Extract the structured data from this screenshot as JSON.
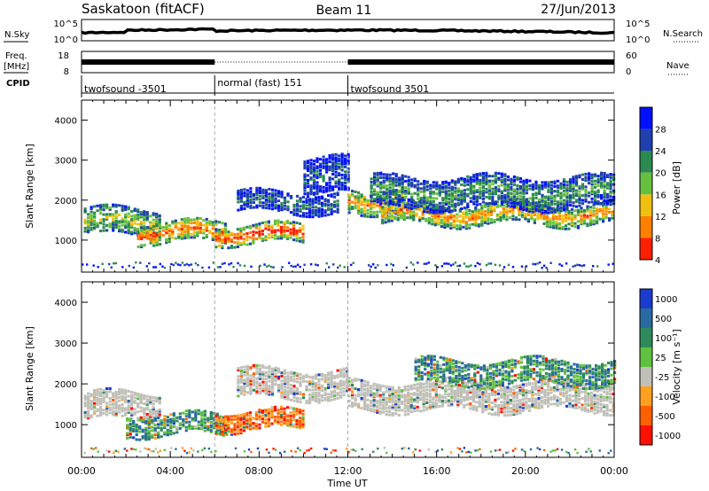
{
  "header": {
    "title": "Saskatoon (fitACF)",
    "beam": "Beam 11",
    "date": "27/Jun/2013"
  },
  "params": {
    "nsky_label": "N.Sky",
    "nsearch_label": "N.Search",
    "nsky_ticks": [
      "10^5",
      "10^0"
    ],
    "nsearch_ticks": [
      "10^5",
      "10^0"
    ],
    "freq_label_top": "Freq.",
    "freq_label_unit": "[MHz]",
    "freq_ticks": [
      "18",
      "8"
    ],
    "nave_label": "Nave",
    "nave_ticks": [
      "60",
      "0"
    ],
    "cpid_label": "CPID",
    "cpid_segments": [
      {
        "label": "twofsound -3501",
        "start_hour": 0,
        "end_hour": 6
      },
      {
        "label": "normal (fast) 151",
        "start_hour": 6,
        "end_hour": 12
      },
      {
        "label": "twofsound 3501",
        "start_hour": 12,
        "end_hour": 24
      }
    ]
  },
  "chart_data": [
    {
      "type": "heatmap",
      "name": "power",
      "ylabel": "Slant Range [km]",
      "xlim_hours": [
        0,
        24
      ],
      "ylim": [
        200,
        4500
      ],
      "yticks": [
        "1000",
        "2000",
        "3000",
        "4000"
      ],
      "colorbar_label": "Power [dB]",
      "colorbar_ticks": [
        "28",
        "24",
        "20",
        "16",
        "12",
        "8",
        "4"
      ],
      "colors": [
        "#0010ff",
        "#2040b0",
        "#2c8a50",
        "#68c040",
        "#f0c010",
        "#ff8000",
        "#ff2000"
      ],
      "mode_change_hours": [
        6,
        12
      ],
      "echo_bands": [
        {
          "start_hour": 0.1,
          "end_hour": 3.5,
          "center_km": 1450,
          "width_km": 650,
          "strength": 0.6
        },
        {
          "start_hour": 2.5,
          "end_hour": 6.5,
          "center_km": 1200,
          "width_km": 500,
          "strength": 0.9
        },
        {
          "start_hour": 6.0,
          "end_hour": 10.0,
          "center_km": 1150,
          "width_km": 450,
          "strength": 1.0
        },
        {
          "start_hour": 7.0,
          "end_hour": 11.5,
          "center_km": 1950,
          "width_km": 500,
          "strength": 0.3
        },
        {
          "start_hour": 10.0,
          "end_hour": 12.0,
          "center_km": 2600,
          "width_km": 900,
          "strength": 0.25
        },
        {
          "start_hour": 12.0,
          "end_hour": 14.5,
          "center_km": 2000,
          "width_km": 600,
          "strength": 0.75
        },
        {
          "start_hour": 13.5,
          "end_hour": 24.0,
          "center_km": 1650,
          "width_km": 500,
          "strength": 0.8
        },
        {
          "start_hour": 13.0,
          "end_hour": 24.0,
          "center_km": 2200,
          "width_km": 800,
          "strength": 0.4
        }
      ]
    },
    {
      "type": "heatmap",
      "name": "velocity",
      "ylabel": "Slant Range [km]",
      "xlabel": "Time UT",
      "xticks": [
        "00:00",
        "04:00",
        "08:00",
        "12:00",
        "16:00",
        "20:00",
        "00:00"
      ],
      "xlim_hours": [
        0,
        24
      ],
      "ylim": [
        200,
        4500
      ],
      "yticks": [
        "1000",
        "2000",
        "3000",
        "4000"
      ],
      "colorbar_label": "Velocity [m s⁻¹]",
      "colorbar_ticks": [
        "1000",
        "500",
        "100",
        "25",
        "-25",
        "-100",
        "-500",
        "-1000"
      ],
      "colors": [
        "#1a3ccc",
        "#2a6aa0",
        "#2e8a5a",
        "#60c040",
        "#c0c0b8",
        "#ffa020",
        "#ff6000",
        "#ff1000"
      ],
      "mode_change_hours": [
        6,
        12
      ],
      "echo_bands": [
        {
          "start_hour": 0.1,
          "end_hour": 3.5,
          "center_km": 1450,
          "width_km": 650,
          "tone": "ground"
        },
        {
          "start_hour": 2.0,
          "end_hour": 6.5,
          "center_km": 1000,
          "width_km": 500,
          "tone": "toward"
        },
        {
          "start_hour": 6.0,
          "end_hour": 10.0,
          "center_km": 1100,
          "width_km": 450,
          "tone": "away"
        },
        {
          "start_hour": 7.0,
          "end_hour": 12.0,
          "center_km": 2000,
          "width_km": 700,
          "tone": "ground"
        },
        {
          "start_hour": 12.0,
          "end_hour": 24.0,
          "center_km": 1700,
          "width_km": 700,
          "tone": "ground"
        },
        {
          "start_hour": 15.0,
          "end_hour": 24.0,
          "center_km": 2300,
          "width_km": 600,
          "tone": "toward"
        }
      ]
    }
  ]
}
